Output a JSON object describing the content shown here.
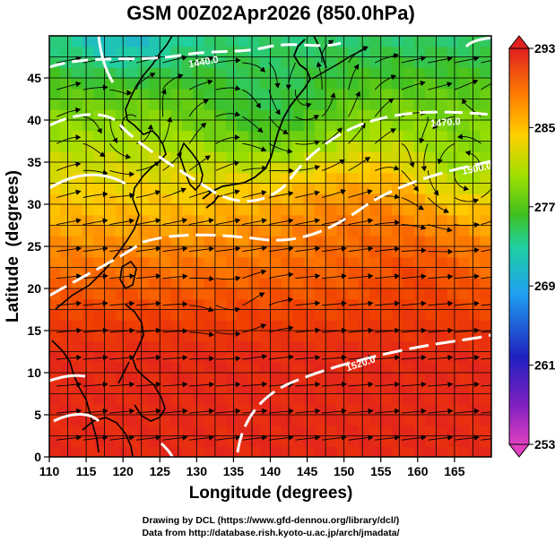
{
  "chart_data": {
    "type": "heatmap",
    "title": "GSM 00Z02Apr2026 (850.0hPa)",
    "xlabel": "Longitude (degrees)",
    "ylabel": "Latitude  (degrees)",
    "xlim": [
      110,
      170
    ],
    "ylim": [
      0,
      50
    ],
    "x_ticks": [
      110,
      115,
      120,
      125,
      130,
      135,
      140,
      145,
      150,
      155,
      160,
      165
    ],
    "y_ticks": [
      0,
      5,
      10,
      15,
      20,
      25,
      30,
      35,
      40,
      45
    ],
    "colorbar": {
      "min": 253,
      "max": 293,
      "ticks": [
        293,
        285,
        277,
        269,
        261,
        253
      ],
      "colors": [
        "#e040c0",
        "#2020c0",
        "#20a0f0",
        "#20d0a0",
        "#40c020",
        "#a0e000",
        "#ffd000",
        "#ff8000",
        "#f04000",
        "#e02020"
      ]
    },
    "contour_labels": [
      "1440.0",
      "1470.0",
      "1500.0",
      "1520.0"
    ],
    "grid": true,
    "credits": {
      "line1": "Drawing by DCL (https://www.gfd-dennou.org/library/dcl/)",
      "line2": "Data from http://database.rish.kyoto-u.ac.jp/arch/jmadata/"
    }
  }
}
